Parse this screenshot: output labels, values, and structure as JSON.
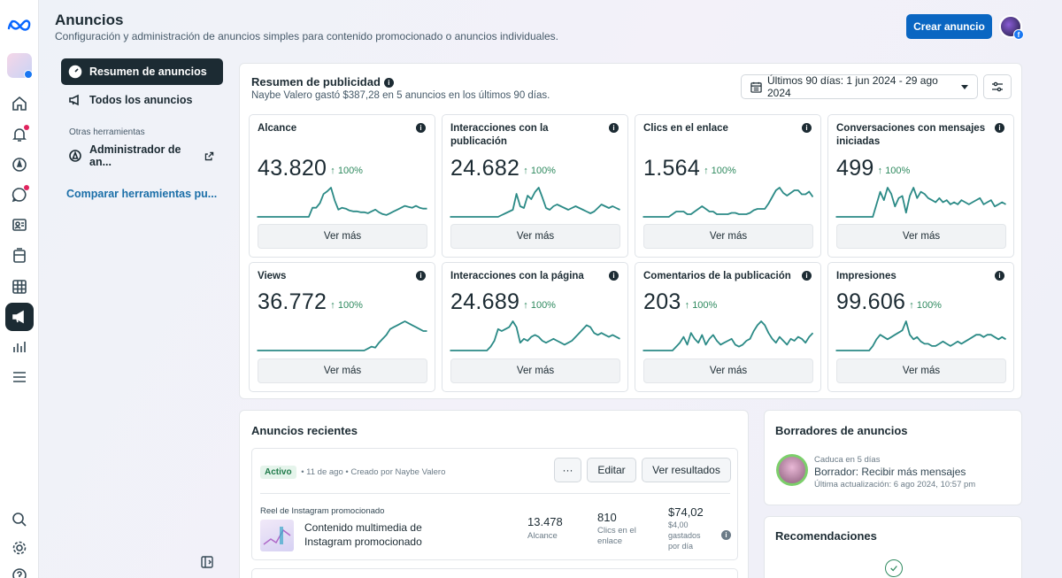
{
  "header": {
    "title": "Anuncios",
    "subtitle": "Configuración y administración de anuncios simples para contenido promocionado o anuncios individuales.",
    "create_button": "Crear anuncio"
  },
  "sidebar": {
    "items": [
      {
        "label": "Resumen de anuncios",
        "icon": "dashboard-icon",
        "selected": true
      },
      {
        "label": "Todos los anuncios",
        "icon": "megaphone-icon",
        "selected": false
      }
    ],
    "section_label": "Otras herramientas",
    "tool_item": "Administrador de an...",
    "compare_link": "Comparar herramientas pu..."
  },
  "summary": {
    "title": "Resumen de publicidad",
    "subtitle": "Naybe Valero gastó $387,28 en 5 anuncios en los últimos 90 días.",
    "date_range": "Últimos 90 días: 1 jun 2024 - 29 ago 2024",
    "metrics": [
      {
        "title": "Alcance",
        "value": "43.820",
        "pct": "100%",
        "more": "Ver más",
        "series": [
          0,
          0,
          0,
          0,
          0,
          0,
          0,
          0,
          0,
          0,
          0,
          0,
          0,
          0,
          0,
          10,
          10,
          15,
          25,
          28,
          32,
          18,
          8,
          10,
          9,
          7,
          6,
          6,
          5,
          5,
          4,
          6,
          8,
          5,
          3,
          2,
          4,
          6,
          8,
          10,
          12,
          11,
          10,
          12,
          10,
          9,
          9
        ]
      },
      {
        "title": "Interacciones con la publicación",
        "value": "24.682",
        "pct": "100%",
        "more": "Ver más",
        "series": [
          0,
          0,
          0,
          0,
          0,
          0,
          0,
          0,
          0,
          0,
          0,
          0,
          0,
          0,
          2,
          4,
          6,
          8,
          26,
          12,
          10,
          24,
          20,
          28,
          33,
          22,
          10,
          8,
          12,
          14,
          12,
          10,
          8,
          10,
          12,
          10,
          8,
          6,
          4,
          6,
          10,
          14,
          12,
          10,
          12,
          10,
          8
        ]
      },
      {
        "title": "Clics en el enlace",
        "value": "1.564",
        "pct": "100%",
        "more": "Ver más",
        "series": [
          0,
          0,
          0,
          0,
          0,
          0,
          0,
          0,
          2,
          4,
          4,
          4,
          2,
          2,
          4,
          6,
          8,
          6,
          4,
          4,
          2,
          2,
          2,
          2,
          3,
          3,
          2,
          2,
          2,
          3,
          5,
          6,
          6,
          6,
          10,
          15,
          20,
          22,
          18,
          16,
          18,
          20,
          20,
          17,
          17,
          19,
          15
        ]
      },
      {
        "title": "Conversaciones con mensajes iniciadas",
        "value": "499",
        "pct": "100%",
        "more": "Ver más",
        "series": [
          0,
          0,
          0,
          0,
          0,
          0,
          0,
          0,
          0,
          0,
          0,
          12,
          24,
          16,
          28,
          22,
          10,
          18,
          20,
          4,
          20,
          28,
          18,
          24,
          22,
          18,
          16,
          14,
          18,
          14,
          16,
          12,
          14,
          12,
          16,
          14,
          12,
          14,
          16,
          18,
          12,
          14,
          16,
          10,
          12,
          14,
          12
        ]
      }
    ],
    "metrics2": [
      {
        "title": "Views",
        "value": "36.772",
        "pct": "100%",
        "more": "Ver más",
        "series": [
          0,
          0,
          0,
          0,
          0,
          0,
          0,
          0,
          0,
          0,
          0,
          0,
          0,
          0,
          0,
          0,
          0,
          0,
          0,
          0,
          0,
          0,
          0,
          0,
          0,
          0,
          0,
          0,
          0,
          0,
          2,
          4,
          3,
          8,
          12,
          16,
          22,
          24,
          26,
          28,
          30,
          28,
          26,
          24,
          22,
          20,
          20
        ]
      },
      {
        "title": "Interacciones con la página",
        "value": "24.689",
        "pct": "100%",
        "more": "Ver más",
        "series": [
          0,
          0,
          0,
          0,
          0,
          0,
          0,
          0,
          0,
          0,
          0,
          4,
          10,
          22,
          20,
          22,
          24,
          30,
          24,
          8,
          12,
          10,
          14,
          16,
          14,
          10,
          8,
          10,
          12,
          10,
          8,
          6,
          8,
          10,
          14,
          18,
          22,
          26,
          24,
          18,
          16,
          18,
          16,
          14,
          16,
          14,
          12
        ]
      },
      {
        "title": "Comentarios de la publicación",
        "value": "203",
        "pct": "100%",
        "more": "Ver más",
        "series": [
          0,
          0,
          0,
          0,
          0,
          0,
          0,
          0,
          0,
          4,
          8,
          14,
          6,
          18,
          12,
          8,
          16,
          6,
          12,
          16,
          10,
          6,
          8,
          10,
          12,
          6,
          4,
          6,
          10,
          12,
          20,
          26,
          30,
          26,
          18,
          12,
          8,
          14,
          10,
          6,
          12,
          10,
          14,
          12,
          8,
          14,
          18
        ]
      },
      {
        "title": "Impresiones",
        "value": "99.606",
        "pct": "100%",
        "more": "Ver más",
        "series": [
          0,
          0,
          0,
          0,
          0,
          0,
          0,
          0,
          0,
          0,
          4,
          10,
          14,
          12,
          10,
          12,
          14,
          16,
          18,
          26,
          14,
          10,
          12,
          8,
          6,
          6,
          4,
          4,
          6,
          8,
          6,
          4,
          6,
          8,
          6,
          8,
          10,
          12,
          14,
          14,
          12,
          14,
          14,
          12,
          10,
          12,
          10
        ]
      }
    ]
  },
  "recent": {
    "title": "Anuncios recientes",
    "status": "Activo",
    "meta": "• 11 de ago • Creado por Naybe Valero",
    "more_button": "···",
    "edit_button": "Editar",
    "results_button": "Ver resultados",
    "ad_type": "Reel de Instagram promocionado",
    "ad_name": "Contenido multimedia de Instagram promocionado",
    "reach_value": "13.478",
    "reach_label": "Alcance",
    "clicks_value": "810",
    "clicks_label": "Clics en el enlace",
    "spent_value": "$74,02",
    "spent_label": "$4,00 gastados por día"
  },
  "drafts": {
    "title": "Borradores de anuncios",
    "expires": "Caduca en 5 días",
    "name": "Borrador: Recibir más mensajes",
    "updated": "Última actualización: 6 ago 2024, 10:57 pm"
  },
  "recommendations": {
    "title": "Recomendaciones"
  },
  "colors": {
    "accent": "#0a66c2",
    "sparkline": "#2b8a86",
    "positive": "#2f8a5f",
    "nav_selected": "#1c2b33"
  }
}
